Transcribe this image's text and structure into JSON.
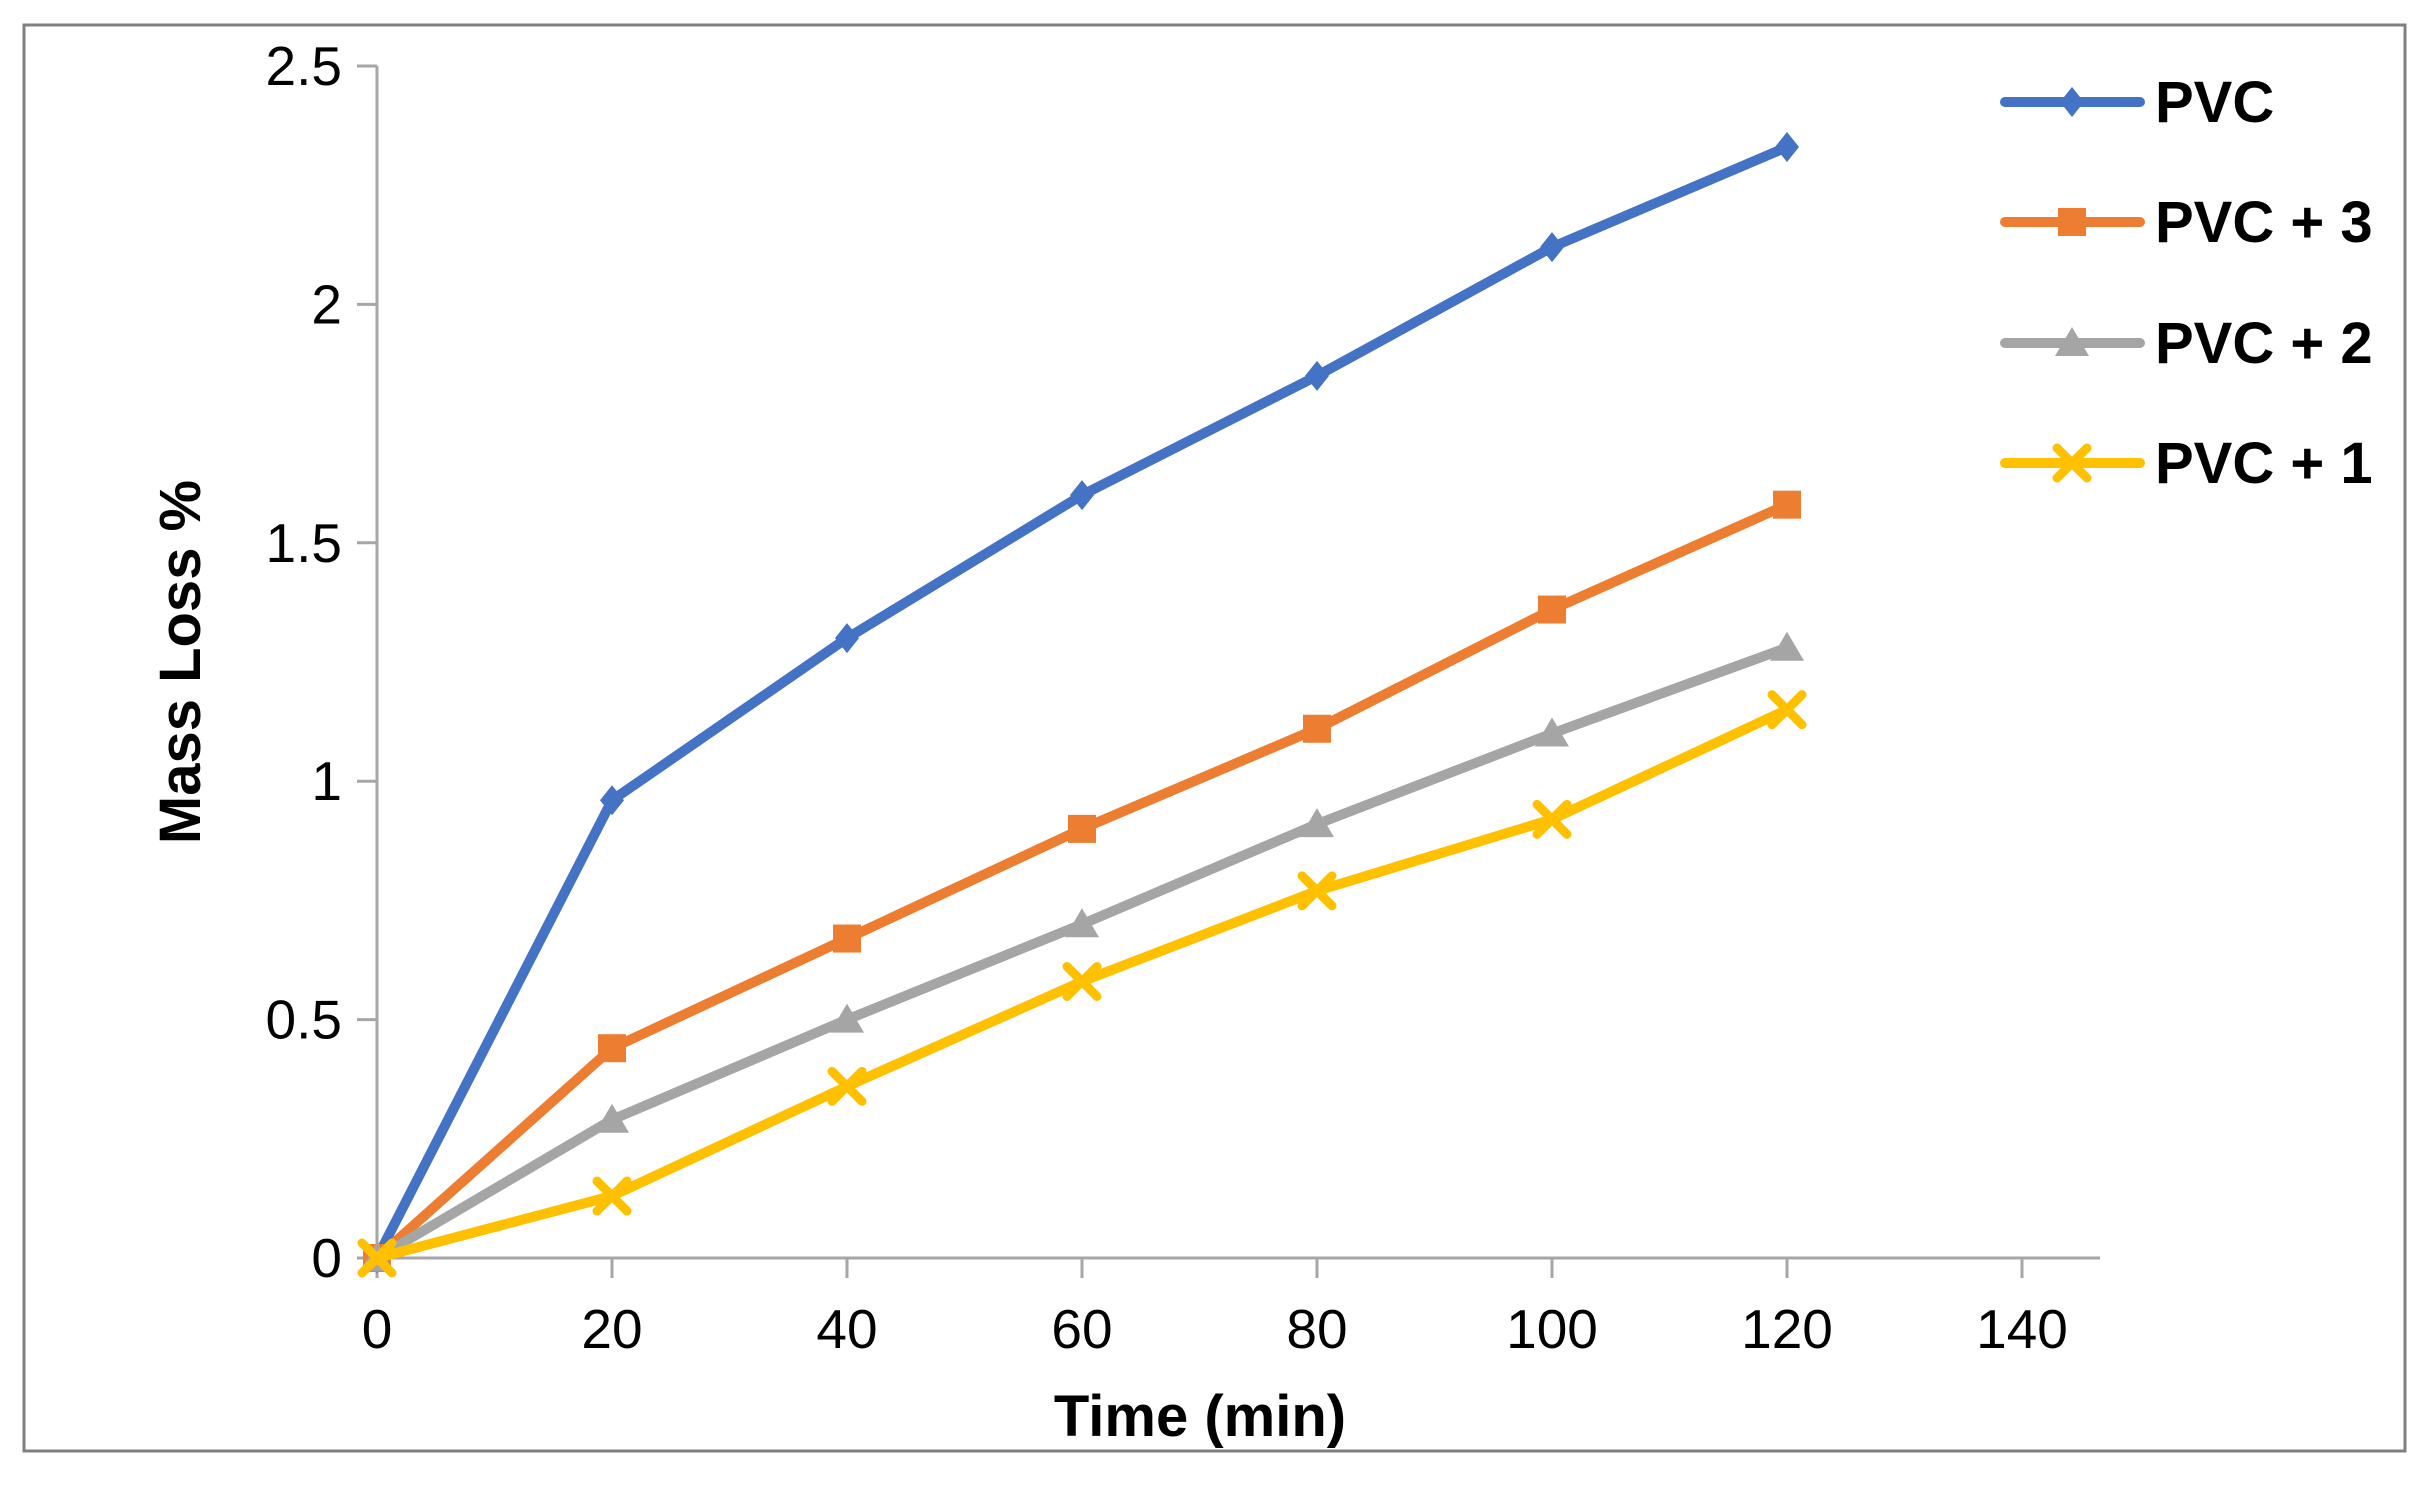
{
  "figure": {
    "background_color": "#ffffff",
    "border_color": "#7f7f7f",
    "axis_color": "#a6a6a6",
    "text_color": "#000000"
  },
  "chart_data": {
    "type": "line",
    "title": "",
    "xlabel": "Time (min)",
    "ylabel": "Mass Loss %",
    "x": [
      0,
      20,
      40,
      60,
      80,
      100,
      120
    ],
    "series": [
      {
        "name": "PVC",
        "color": "#4472C4",
        "marker": "diamond",
        "values": [
          0,
          0.96,
          1.3,
          1.6,
          1.85,
          2.12,
          2.33
        ]
      },
      {
        "name": "PVC + 3",
        "color": "#ED7D31",
        "marker": "square",
        "values": [
          0,
          0.44,
          0.67,
          0.9,
          1.11,
          1.36,
          1.58
        ]
      },
      {
        "name": "PVC + 2",
        "color": "#A5A5A5",
        "marker": "triangle",
        "values": [
          0,
          0.29,
          0.5,
          0.7,
          0.91,
          1.1,
          1.28
        ]
      },
      {
        "name": "PVC + 1",
        "color": "#FFC000",
        "marker": "x",
        "values": [
          0,
          0.13,
          0.36,
          0.58,
          0.77,
          0.92,
          1.15
        ]
      }
    ],
    "xlim": [
      0,
      140
    ],
    "ylim": [
      0,
      2.5
    ],
    "x_ticks": [
      0,
      20,
      40,
      60,
      80,
      100,
      120,
      140
    ],
    "y_ticks": [
      0,
      0.5,
      1,
      1.5,
      2,
      2.5
    ],
    "grid": false,
    "legend_position": "top-right"
  }
}
